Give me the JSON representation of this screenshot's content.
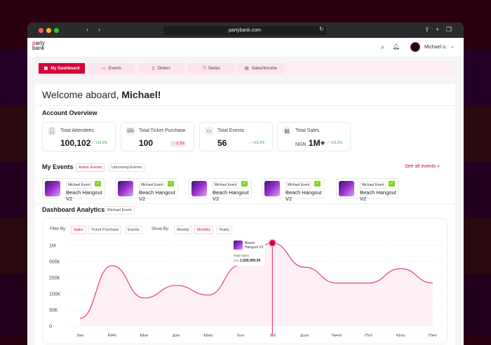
{
  "browser": {
    "url": "partybank.com"
  },
  "header": {
    "logo_top": "party",
    "logo_bottom": "bank",
    "user_name": "Michael o."
  },
  "nav": {
    "tabs": [
      {
        "label": "My Dashboard",
        "icon": "grid-icon"
      },
      {
        "label": "Events",
        "icon": "calendar-icon"
      },
      {
        "label": "Orders",
        "icon": "document-icon"
      },
      {
        "label": "Series",
        "icon": "shuffle-icon"
      },
      {
        "label": "Sales/Income",
        "icon": "receipt-icon"
      }
    ]
  },
  "welcome": {
    "prefix": "Welcome aboard,",
    "name": "Michael!"
  },
  "overview": {
    "title": "Account Overview",
    "cards": [
      {
        "label": "Total Attendees",
        "prefix": "",
        "value": "100,102",
        "change": "+23.2%",
        "trend": "up"
      },
      {
        "label": "Total Ticket Purchase",
        "prefix": "",
        "value": "100",
        "change": "-2.2%",
        "trend": "down"
      },
      {
        "label": "Total Events",
        "prefix": "",
        "value": "56",
        "change": "+23.2%",
        "trend": "up"
      },
      {
        "label": "Total Sales",
        "prefix": "NGN",
        "value": "1M+",
        "change": "+23.2%",
        "trend": "up"
      }
    ]
  },
  "events": {
    "title": "My Events",
    "tabs": [
      "Active Events",
      "Upcoming Events"
    ],
    "see_all": "See all events »",
    "items": [
      {
        "tag": "Michael Event",
        "name": "Beach Hangout V2"
      },
      {
        "tag": "Michael Event",
        "name": "Beach Hangout V2"
      },
      {
        "tag": "Michael Event",
        "name": "Beach Hangout V2"
      },
      {
        "tag": "Michael Event",
        "name": "Beach Hangout V2"
      },
      {
        "tag": "Michael Event",
        "name": "Beach Hangout V2"
      }
    ]
  },
  "analytics": {
    "title": "Dashboard Analytics",
    "event_tag": "Michael Event",
    "filter_label": "Filter By:",
    "filters": [
      "Sales",
      "Ticket Purchase",
      "Events"
    ],
    "active_filter": "Sales",
    "show_label": "Show By:",
    "periods": [
      "Weekly",
      "Monthly",
      "Yearly"
    ],
    "active_period": "Monthly",
    "tooltip": {
      "event": "Beach Hangout V2",
      "label": "Total Sales",
      "currency": "NGN",
      "value": "1,500,000.00"
    }
  },
  "accent": "#d6003a",
  "chart_data": {
    "type": "area",
    "categories": [
      "Jan",
      "Feb",
      "Mar",
      "Apr",
      "May",
      "Jun",
      "Jul",
      "Aug",
      "Sept",
      "Oct",
      "Nov",
      "Dec"
    ],
    "y_ticks": [
      "0",
      "50K",
      "100K",
      "250k",
      "500k",
      "1M"
    ],
    "y_tick_values": [
      0,
      50000,
      100000,
      250000,
      500000,
      1000000
    ],
    "values": [
      24000,
      435000,
      87000,
      178000,
      96000,
      445000,
      1500000,
      413000,
      200000,
      200000,
      390000,
      200000
    ],
    "highlight": "Jul",
    "grid": true,
    "color": "#e8406a"
  }
}
